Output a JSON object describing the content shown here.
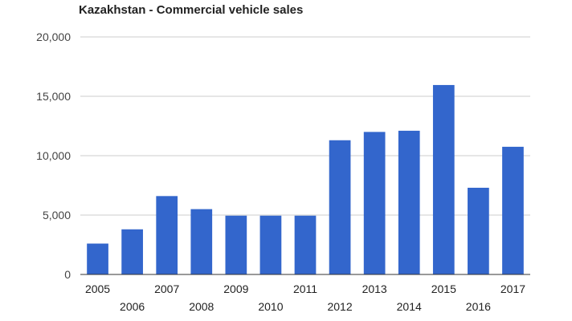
{
  "chart_data": {
    "type": "bar",
    "title": "Kazakhstan - Commercial vehicle sales",
    "xlabel": "",
    "ylabel": "",
    "categories": [
      "2005",
      "2006",
      "2007",
      "2008",
      "2009",
      "2010",
      "2011",
      "2012",
      "2013",
      "2014",
      "2015",
      "2016",
      "2017"
    ],
    "values": [
      2600,
      3800,
      6600,
      5500,
      4950,
      4950,
      4950,
      11300,
      12000,
      12100,
      15950,
      7300,
      10750
    ],
    "ylim": [
      0,
      20000
    ],
    "yticks": [
      0,
      5000,
      10000,
      15000,
      20000
    ],
    "ytick_labels": [
      "0",
      "5,000",
      "10,000",
      "15,000",
      "20,000"
    ],
    "grid": true,
    "legend": "none",
    "bar_color": "#3366cc"
  }
}
